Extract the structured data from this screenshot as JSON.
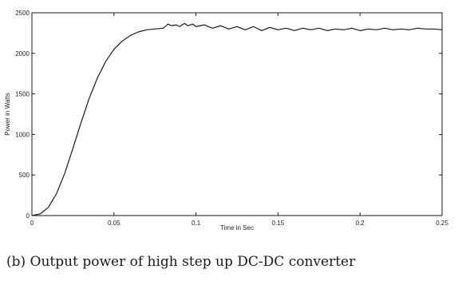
{
  "caption": "(b)  Output power of high step up DC-DC converter",
  "chart_data": {
    "type": "line",
    "title": "",
    "xlabel": "Time in Sec",
    "ylabel": "Power in Watts",
    "xlim": [
      0,
      0.25
    ],
    "ylim": [
      0,
      2500
    ],
    "xticks": [
      0,
      0.05,
      0.1,
      0.15,
      0.2,
      0.25
    ],
    "xtick_labels": [
      "0",
      "0.05",
      "0.1",
      "0.15",
      "0.2",
      "0.25"
    ],
    "yticks": [
      0,
      500,
      1000,
      1500,
      2000,
      2500
    ],
    "ytick_labels": [
      "0",
      "500",
      "1000",
      "1500",
      "2000",
      "2500"
    ],
    "grid": false,
    "legend": "none",
    "line_color": "#1a1a1a",
    "series": [
      {
        "x": [
          0,
          0.005,
          0.01,
          0.015,
          0.02,
          0.025,
          0.03,
          0.035,
          0.04,
          0.045,
          0.05,
          0.055,
          0.06,
          0.065,
          0.07,
          0.075,
          0.08,
          0.083,
          0.085,
          0.088,
          0.09,
          0.093,
          0.095,
          0.098,
          0.1,
          0.105,
          0.11,
          0.115,
          0.12,
          0.125,
          0.13,
          0.135,
          0.14,
          0.145,
          0.15,
          0.155,
          0.16,
          0.165,
          0.17,
          0.175,
          0.18,
          0.185,
          0.19,
          0.195,
          0.2,
          0.205,
          0.21,
          0.215,
          0.22,
          0.225,
          0.23,
          0.235,
          0.24,
          0.245,
          0.25
        ],
        "y": [
          0,
          20,
          100,
          270,
          520,
          830,
          1150,
          1450,
          1700,
          1900,
          2050,
          2150,
          2220,
          2265,
          2290,
          2300,
          2310,
          2360,
          2340,
          2350,
          2330,
          2370,
          2340,
          2360,
          2330,
          2350,
          2310,
          2340,
          2300,
          2330,
          2290,
          2330,
          2280,
          2320,
          2290,
          2310,
          2280,
          2310,
          2290,
          2310,
          2280,
          2300,
          2290,
          2310,
          2280,
          2300,
          2290,
          2310,
          2290,
          2300,
          2290,
          2310,
          2300,
          2300,
          2290
        ]
      }
    ]
  }
}
